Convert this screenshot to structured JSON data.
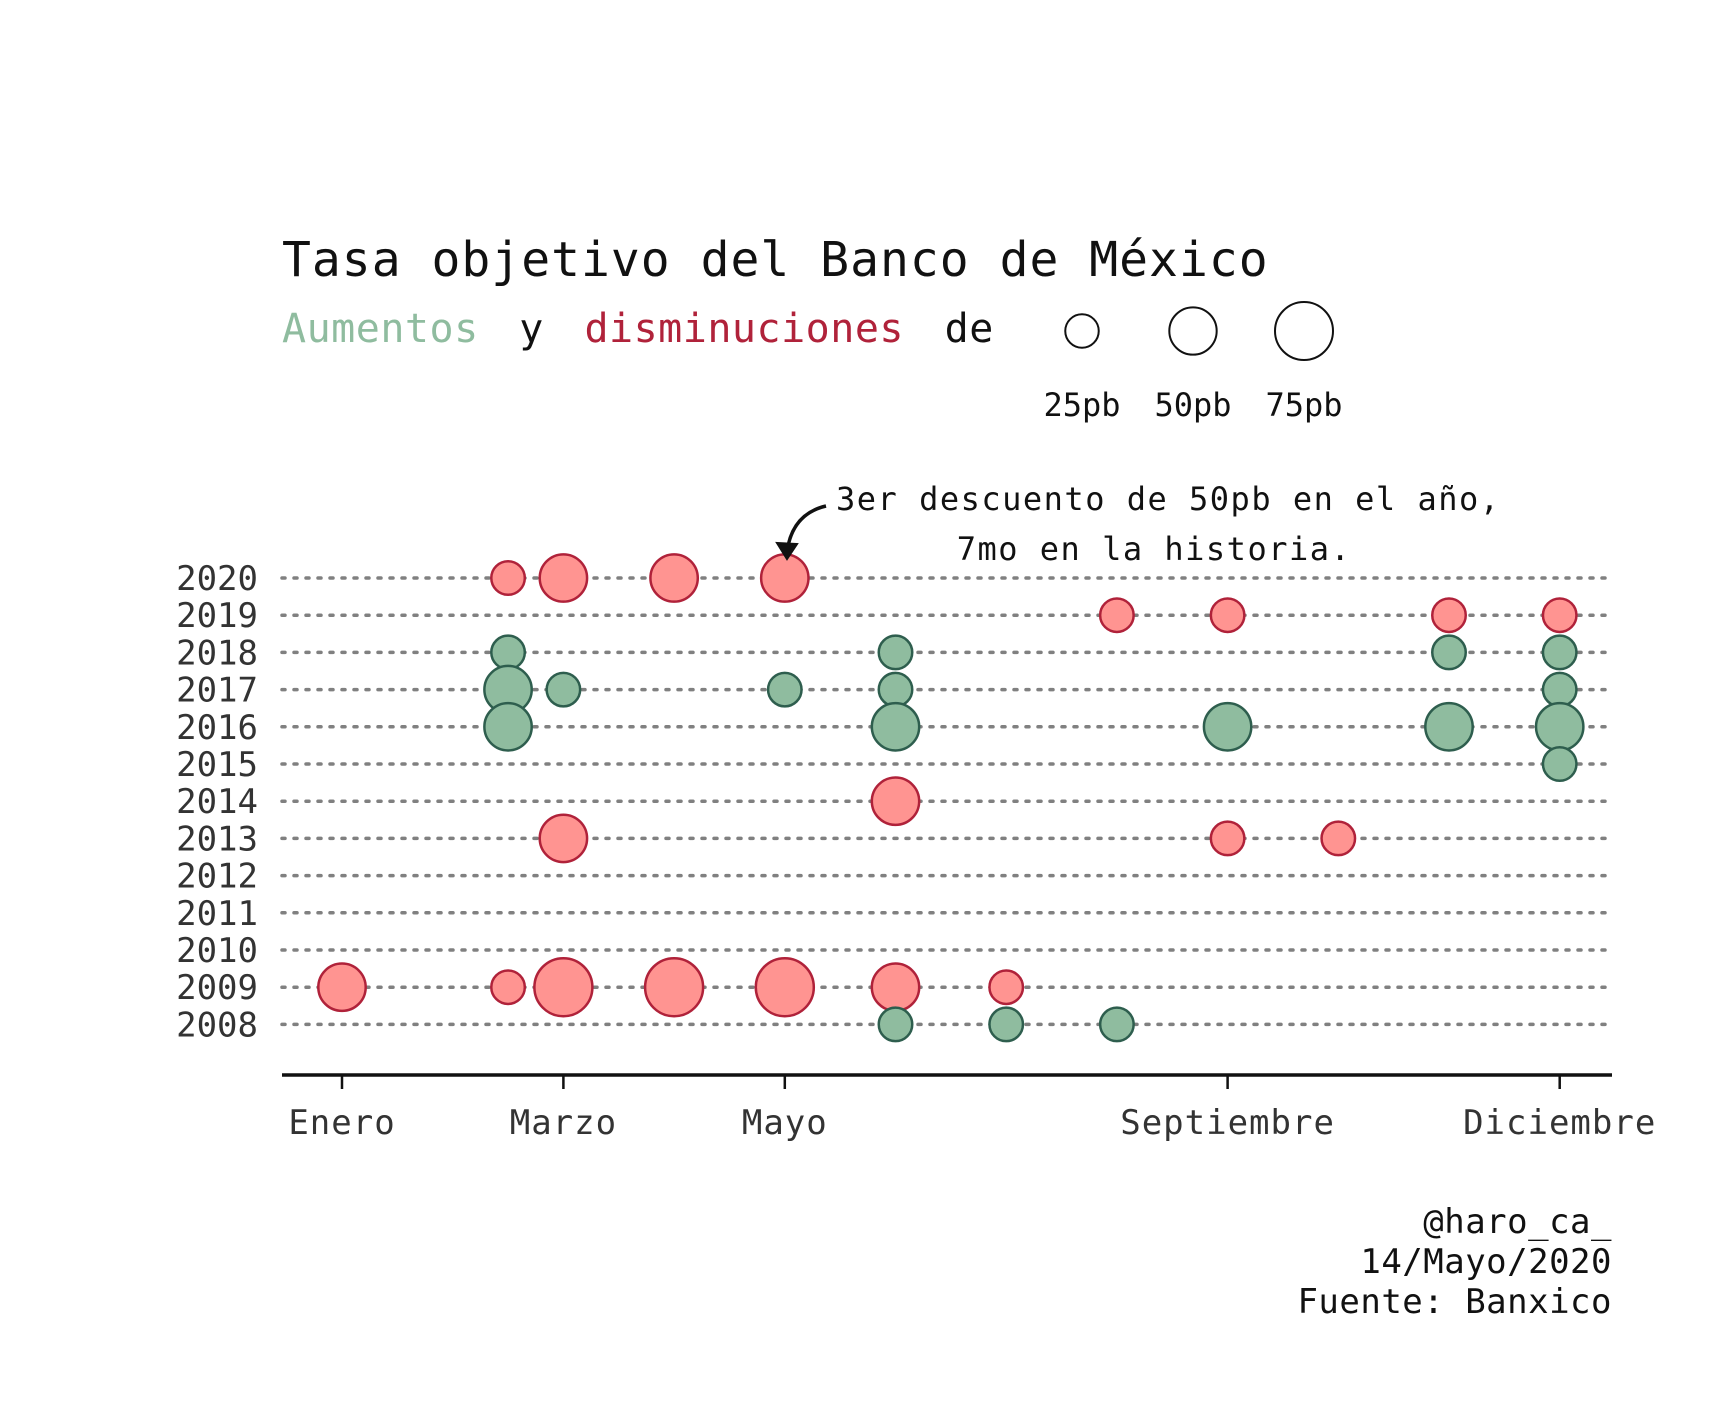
{
  "chart_data": {
    "type": "scatter",
    "title": "Tasa objetivo del Banco de México",
    "subtitle": {
      "increase_word": "Aumentos",
      "connector": "y",
      "decrease_word": "disminuciones",
      "suffix": "de"
    },
    "size_legend": [
      {
        "bp": 25,
        "label": "25pb"
      },
      {
        "bp": 50,
        "label": "50pb"
      },
      {
        "bp": 75,
        "label": "75pb"
      }
    ],
    "x_range": [
      1,
      12
    ],
    "x_ticks": [
      {
        "month": 1,
        "label": "Enero"
      },
      {
        "month": 3,
        "label": "Marzo"
      },
      {
        "month": 5,
        "label": "Mayo"
      },
      {
        "month": 9,
        "label": "Septiembre"
      },
      {
        "month": 12,
        "label": "Diciembre"
      }
    ],
    "years": [
      "2020",
      "2019",
      "2018",
      "2017",
      "2016",
      "2015",
      "2014",
      "2013",
      "2012",
      "2011",
      "2010",
      "2009",
      "2008"
    ],
    "grid": "dotted horizontal lines per year",
    "colors": {
      "increase_fill": "#8fbc9f",
      "increase_stroke": "#2e5e4e",
      "decrease_fill": "#ff9491",
      "decrease_stroke": "#b0223a",
      "increase_text": "#8fbc9f",
      "decrease_text": "#b0223a",
      "grid": "#808080"
    },
    "points": [
      {
        "year": 2020,
        "month": 2.5,
        "bp": -25
      },
      {
        "year": 2020,
        "month": 3,
        "bp": -50
      },
      {
        "year": 2020,
        "month": 4,
        "bp": -50
      },
      {
        "year": 2020,
        "month": 5,
        "bp": -50
      },
      {
        "year": 2019,
        "month": 8,
        "bp": -25
      },
      {
        "year": 2019,
        "month": 9,
        "bp": -25
      },
      {
        "year": 2019,
        "month": 11,
        "bp": -25
      },
      {
        "year": 2019,
        "month": 12,
        "bp": -25
      },
      {
        "year": 2018,
        "month": 2.5,
        "bp": 25
      },
      {
        "year": 2018,
        "month": 6,
        "bp": 25
      },
      {
        "year": 2018,
        "month": 11,
        "bp": 25
      },
      {
        "year": 2018,
        "month": 12,
        "bp": 25
      },
      {
        "year": 2017,
        "month": 2.5,
        "bp": 50
      },
      {
        "year": 2017,
        "month": 3,
        "bp": 25
      },
      {
        "year": 2017,
        "month": 5,
        "bp": 25
      },
      {
        "year": 2017,
        "month": 6,
        "bp": 25
      },
      {
        "year": 2017,
        "month": 12,
        "bp": 25
      },
      {
        "year": 2016,
        "month": 2.5,
        "bp": 50
      },
      {
        "year": 2016,
        "month": 6,
        "bp": 50
      },
      {
        "year": 2016,
        "month": 9,
        "bp": 50
      },
      {
        "year": 2016,
        "month": 11,
        "bp": 50
      },
      {
        "year": 2016,
        "month": 12,
        "bp": 50
      },
      {
        "year": 2015,
        "month": 12,
        "bp": 25
      },
      {
        "year": 2014,
        "month": 6,
        "bp": -50
      },
      {
        "year": 2013,
        "month": 3,
        "bp": -50
      },
      {
        "year": 2013,
        "month": 9,
        "bp": -25
      },
      {
        "year": 2013,
        "month": 10,
        "bp": -25
      },
      {
        "year": 2009,
        "month": 1,
        "bp": -50
      },
      {
        "year": 2009,
        "month": 2.5,
        "bp": -25
      },
      {
        "year": 2009,
        "month": 3,
        "bp": -75
      },
      {
        "year": 2009,
        "month": 4,
        "bp": -75
      },
      {
        "year": 2009,
        "month": 5,
        "bp": -75
      },
      {
        "year": 2009,
        "month": 6,
        "bp": -50
      },
      {
        "year": 2009,
        "month": 7,
        "bp": -25
      },
      {
        "year": 2008,
        "month": 6,
        "bp": 25
      },
      {
        "year": 2008,
        "month": 7,
        "bp": 25
      },
      {
        "year": 2008,
        "month": 8,
        "bp": 25
      }
    ],
    "annotation": {
      "year": 2020,
      "month": 5,
      "lines": [
        "3er descuento de 50pb en el año,",
        "7mo en la historia."
      ]
    },
    "credits": [
      "@haro_ca_",
      "14/Mayo/2020",
      "Fuente: Banxico"
    ]
  }
}
